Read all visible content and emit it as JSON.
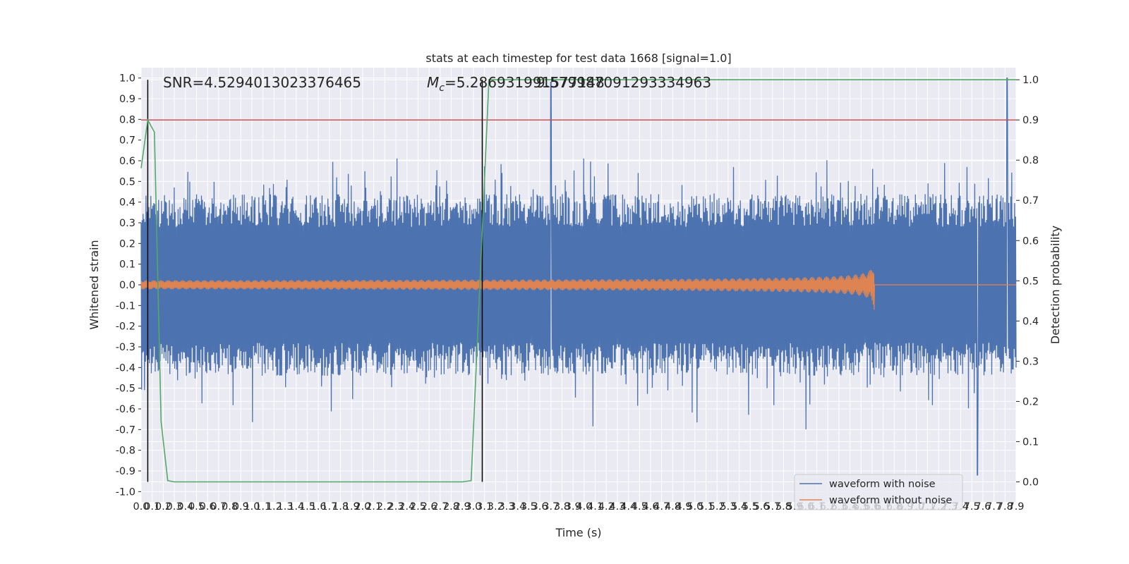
{
  "chart_data": {
    "type": "line",
    "title": "stats at each timestep for test data 1668 [signal=1.0]",
    "xlabel": "Time (s)",
    "ylabel": "Whitened strain",
    "y2label": "Detection probability",
    "annotations": {
      "snr": "SNR=4.5294013023376465",
      "mc_prefix": "M",
      "mc_sub": "c",
      "mc_value": "=5.286931991577148",
      "overlap": "9.579987091293334963"
    },
    "xlim": [
      0,
      7.9
    ],
    "ylim": [
      -1.05,
      1.05
    ],
    "y2lim": [
      -0.05,
      1.03
    ],
    "x_ticks": [
      "0.0",
      "0.1",
      "0.2",
      "0.3",
      "0.4",
      "0.5",
      "0.6",
      "0.7",
      "0.8",
      "0.9",
      "1.0",
      "1.1",
      "1.2",
      "1.3",
      "1.4",
      "1.5",
      "1.6",
      "1.7",
      "1.8",
      "1.9",
      "2.0",
      "2.1",
      "2.2",
      "2.3",
      "2.4",
      "2.5",
      "2.6",
      "2.7",
      "2.8",
      "2.9",
      "3.0",
      "3.1",
      "3.2",
      "3.3",
      "3.4",
      "3.5",
      "3.6",
      "3.7",
      "3.8",
      "3.9",
      "4.0",
      "4.1",
      "4.2",
      "4.3",
      "4.4",
      "4.5",
      "4.6",
      "4.7",
      "4.8",
      "4.9",
      "5.0",
      "5.1",
      "5.2",
      "5.3",
      "5.4",
      "5.5",
      "5.6",
      "5.7",
      "5.8",
      "5.9",
      "6.0",
      "6.1",
      "6.2",
      "6.3",
      "6.4",
      "6.5",
      "6.6",
      "6.7",
      "6.8",
      "6.9",
      "7.0",
      "7.1",
      "7.2",
      "7.3",
      "7.4",
      "7.5",
      "7.6",
      "7.7",
      "7.8",
      "7.9"
    ],
    "y_ticks": [
      "1.0",
      "0.9",
      "0.8",
      "0.7",
      "0.6",
      "0.5",
      "0.4",
      "0.3",
      "0.2",
      "0.1",
      "0.0",
      "-0.1",
      "-0.2",
      "-0.3",
      "-0.4",
      "-0.5",
      "-0.6",
      "-0.7",
      "-0.8",
      "-0.9",
      "-1.0"
    ],
    "y2_ticks": [
      "1.0",
      "0.9",
      "0.8",
      "0.7",
      "0.6",
      "0.5",
      "0.4",
      "0.3",
      "0.2",
      "0.1",
      "0.0"
    ],
    "threshold": 0.9,
    "vlines": [
      0.06,
      3.08
    ],
    "series": [
      {
        "name": "waveform with noise",
        "color": "#4c72b0",
        "note": "whitened strain noise, amplitude approx. ±0.4 with spikes to ±1.0"
      },
      {
        "name": "waveform without noise",
        "color": "#dd8452",
        "note": "chirp growing to 0.12 peak at 6.6 s, zero after"
      }
    ],
    "detection_probability": {
      "color": "#55a868",
      "x": [
        0.0,
        0.06,
        0.12,
        0.18,
        0.24,
        0.3,
        2.9,
        2.98,
        3.06,
        3.14,
        7.9
      ],
      "y": [
        0.78,
        0.9,
        0.87,
        0.15,
        0.003,
        0.0,
        0.0,
        0.003,
        0.5,
        1.0,
        1.0
      ]
    },
    "legend": {
      "position": "lower-right",
      "entries": [
        "waveform with noise",
        "waveform without noise"
      ]
    },
    "grid": true,
    "threshold_color": "#c44e52"
  }
}
